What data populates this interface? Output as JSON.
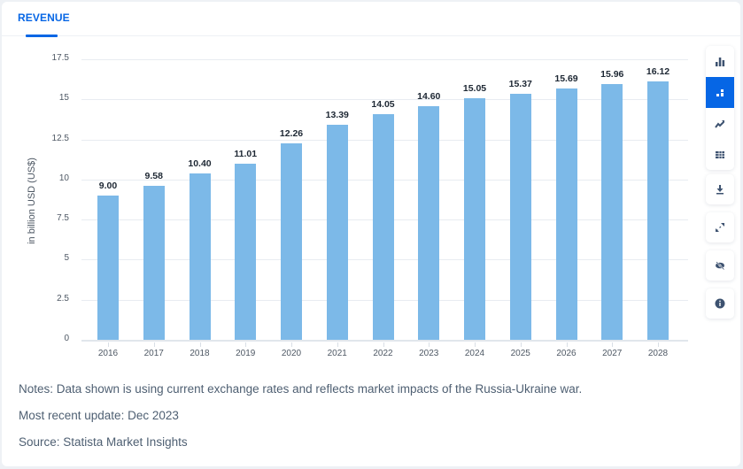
{
  "tab": {
    "label": "REVENUE"
  },
  "chart_data": {
    "type": "bar",
    "title": "Revenue",
    "xlabel": "",
    "ylabel": "in billion USD (US$)",
    "ylim": [
      0,
      17.5
    ],
    "yticks": [
      "17.5",
      "15",
      "12.5",
      "10",
      "7.5",
      "5",
      "2.5",
      "0"
    ],
    "grid": true,
    "categories": [
      "2016",
      "2017",
      "2018",
      "2019",
      "2020",
      "2021",
      "2022",
      "2023",
      "2024",
      "2025",
      "2026",
      "2027",
      "2028"
    ],
    "values": [
      9.0,
      9.58,
      10.4,
      11.01,
      12.26,
      13.39,
      14.05,
      14.6,
      15.05,
      15.37,
      15.69,
      15.96,
      16.12
    ],
    "value_labels": [
      "9.00",
      "9.58",
      "10.40",
      "11.01",
      "12.26",
      "13.39",
      "14.05",
      "14.60",
      "15.05",
      "15.37",
      "15.69",
      "15.96",
      "16.12"
    ],
    "bar_color": "#7cb9e8"
  },
  "toolbar": {
    "items": [
      {
        "icon": "bar-chart-icon",
        "label": "Column chart",
        "active": false
      },
      {
        "icon": "bar-chart-with-data-icon",
        "label": "Chart with data",
        "active": true
      },
      {
        "icon": "trend-line-icon",
        "label": "Line chart",
        "active": false
      },
      {
        "icon": "table-icon",
        "label": "Table",
        "active": false
      },
      {
        "icon": "download-icon",
        "label": "Download",
        "active": false
      },
      {
        "icon": "expand-icon",
        "label": "Fullscreen",
        "active": false
      },
      {
        "icon": "hide-icon",
        "label": "Hide",
        "active": false
      },
      {
        "icon": "info-icon",
        "label": "Info",
        "active": false
      }
    ],
    "accent": "#0666e5"
  },
  "notes": {
    "note": "Notes: Data shown is using current exchange rates and reflects market impacts of the Russia-Ukraine war.",
    "update": "Most recent update: Dec 2023",
    "source": "Source: Statista Market Insights"
  }
}
